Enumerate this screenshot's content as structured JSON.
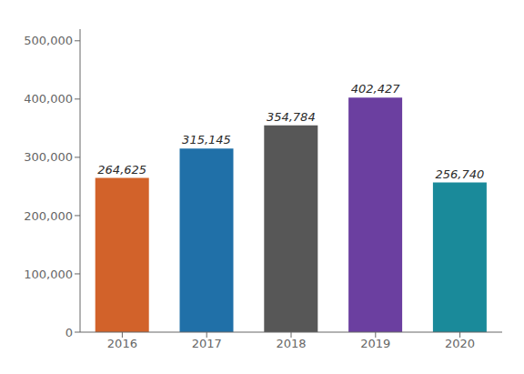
{
  "chart_data": {
    "type": "bar",
    "categories": [
      "2016",
      "2017",
      "2018",
      "2019",
      "2020"
    ],
    "values": [
      264625,
      315145,
      354784,
      402427,
      256740
    ],
    "value_labels": [
      "264,625",
      "315,145",
      "354,784",
      "402,427",
      "256,740"
    ],
    "data_labels": true,
    "colors": [
      "#d2622a",
      "#2070a8",
      "#575757",
      "#6b3fa0",
      "#1a8a9a"
    ],
    "ylim": [
      0,
      520000
    ],
    "yticks": [
      0,
      {
        "value": 100000,
        "label": "100,000"
      },
      {
        "value": 200000,
        "label": "200,000"
      },
      {
        "value": 300000,
        "label": "300,000"
      },
      {
        "value": 400000,
        "label": "400,000"
      },
      {
        "value": 500000,
        "label": "500,000"
      }
    ],
    "grid": false
  }
}
